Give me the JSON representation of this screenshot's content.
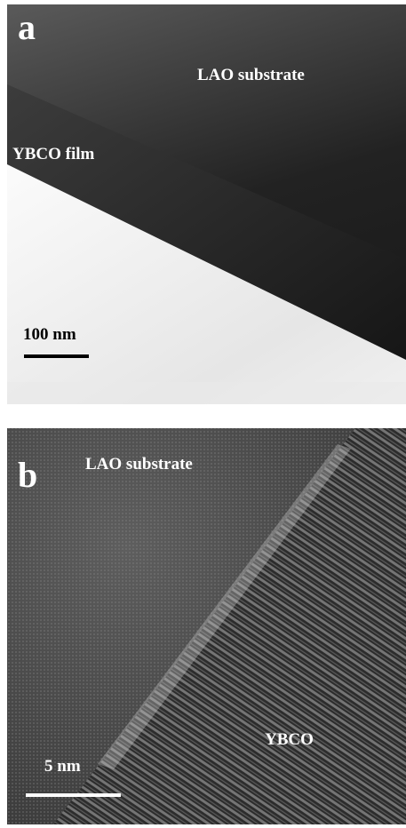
{
  "panels": [
    {
      "label": "a",
      "annotations": [
        "LAO substrate",
        "YBCO film"
      ],
      "scale_bar": "100 nm"
    },
    {
      "label": "b",
      "annotations": [
        "LAO substrate",
        "YBCO"
      ],
      "scale_bar": "5 nm"
    }
  ]
}
